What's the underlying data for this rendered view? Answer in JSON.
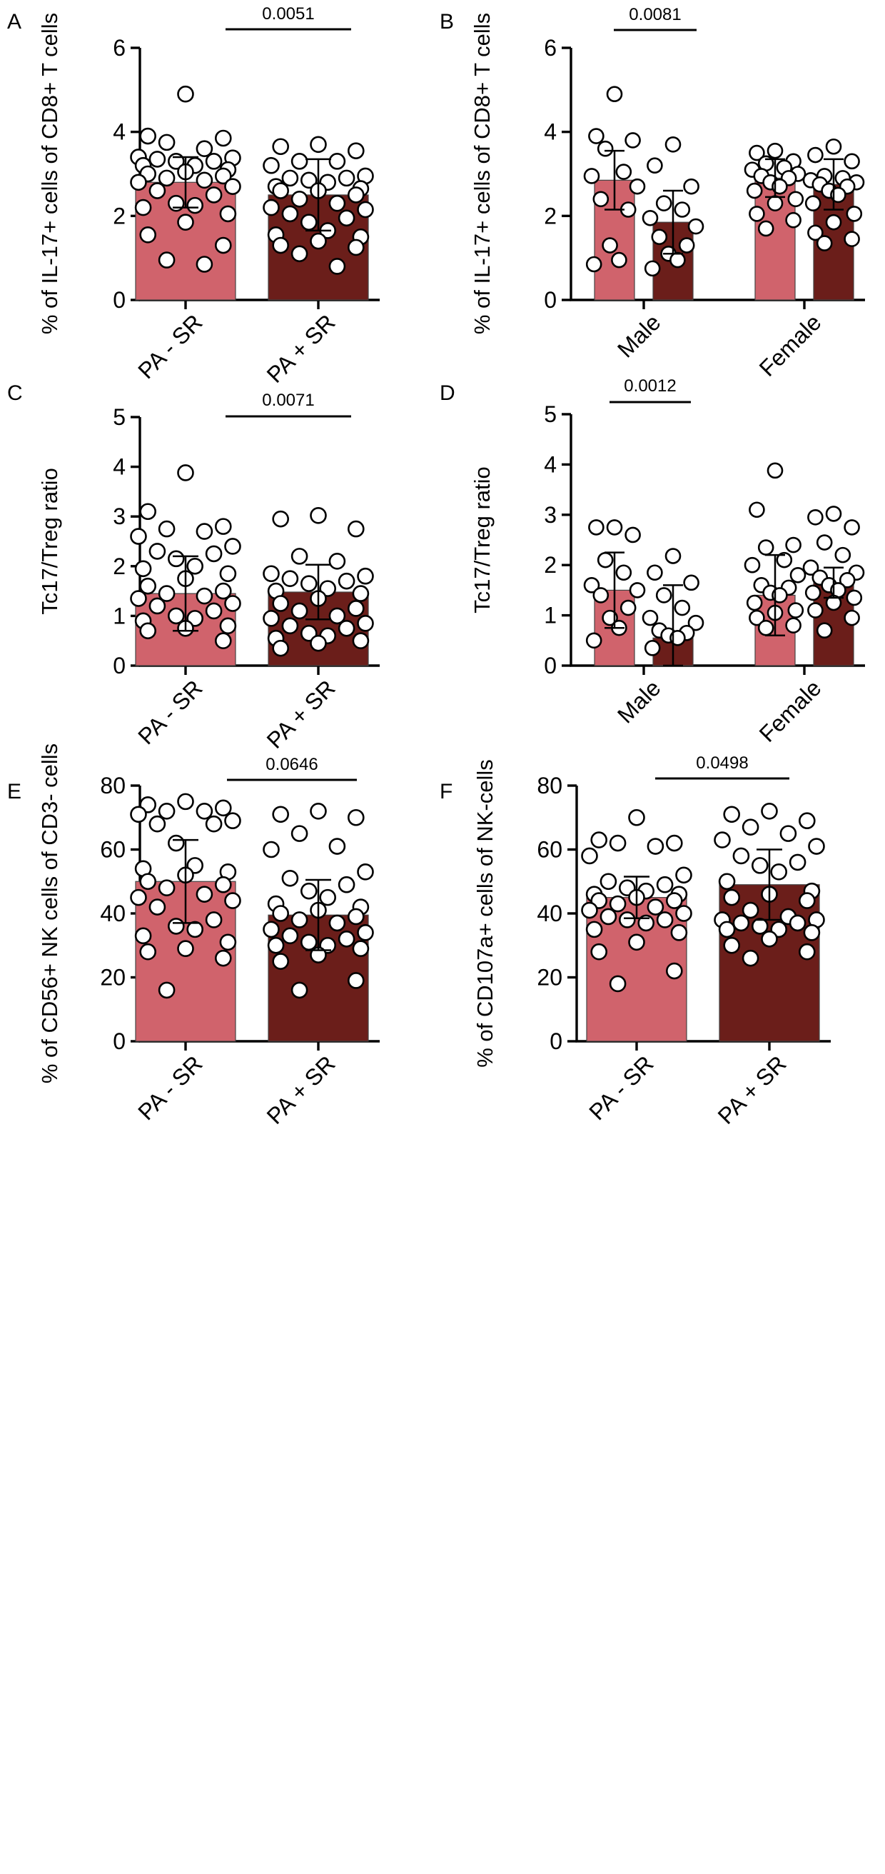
{
  "colors": {
    "bar_minus": "#D0636C",
    "bar_plus": "#6B1E1A",
    "point_fill": "#FFFFFF",
    "point_stroke": "#000000"
  },
  "chart_data": [
    {
      "panel": "A",
      "type": "bar",
      "title": "",
      "ylabel": "% of IL-17+ cells of CD8+ T cells",
      "xlabel": "",
      "ylim": [
        0,
        6
      ],
      "yticks": [
        0,
        2,
        4,
        6
      ],
      "categories": [
        "PA - SR",
        "PA + SR"
      ],
      "series": [
        {
          "name": "PA - SR",
          "color": "#D0636C",
          "mean": 2.8,
          "sd": 0.6,
          "points": [
            4.9,
            3.9,
            3.85,
            3.75,
            3.6,
            3.4,
            3.38,
            3.35,
            3.3,
            3.3,
            3.2,
            3.2,
            3.1,
            3.05,
            3.0,
            2.95,
            2.9,
            2.85,
            2.8,
            2.7,
            2.6,
            2.5,
            2.3,
            2.25,
            2.2,
            2.05,
            1.85,
            1.55,
            1.3,
            0.95,
            0.85
          ]
        },
        {
          "name": "PA + SR",
          "color": "#6B1E1A",
          "mean": 2.5,
          "sd": 0.85,
          "points": [
            3.7,
            3.65,
            3.55,
            3.3,
            3.3,
            3.2,
            2.95,
            2.9,
            2.9,
            2.85,
            2.8,
            2.7,
            2.65,
            2.6,
            2.6,
            2.5,
            2.4,
            2.3,
            2.2,
            2.15,
            2.05,
            1.95,
            1.85,
            1.65,
            1.55,
            1.5,
            1.4,
            1.3,
            1.25,
            1.1,
            0.8
          ]
        }
      ],
      "comparisons": [
        {
          "from": "PA - SR",
          "to": "PA + SR",
          "label": "0.0051"
        }
      ]
    },
    {
      "panel": "B",
      "type": "bar",
      "title": "",
      "ylabel": "% of IL-17+ cells of CD8+ T cells",
      "xlabel": "",
      "ylim": [
        0,
        6
      ],
      "yticks": [
        0,
        2,
        4,
        6
      ],
      "categories": [
        "Male",
        "Female"
      ],
      "series": [
        {
          "name": "PA - SR",
          "color": "#D0636C",
          "means": [
            2.85,
            2.9
          ],
          "sds": [
            0.7,
            0.45
          ],
          "points": [
            [
              4.9,
              3.9,
              3.8,
              3.6,
              3.05,
              2.95,
              2.7,
              2.4,
              2.15,
              1.3,
              0.95,
              0.85
            ],
            [
              3.55,
              3.5,
              3.3,
              3.25,
              3.15,
              3.1,
              3.0,
              2.95,
              2.9,
              2.8,
              2.7,
              2.6,
              2.4,
              2.3,
              2.05,
              1.9,
              1.7
            ]
          ]
        },
        {
          "name": "PA + SR",
          "color": "#6B1E1A",
          "means": [
            1.85,
            2.75
          ],
          "sds": [
            0.75,
            0.6
          ],
          "points": [
            [
              3.7,
              3.2,
              2.7,
              2.3,
              2.15,
              1.95,
              1.75,
              1.5,
              1.3,
              1.1,
              0.95,
              0.75
            ],
            [
              3.65,
              3.45,
              3.3,
              2.95,
              2.9,
              2.85,
              2.8,
              2.75,
              2.7,
              2.6,
              2.5,
              2.3,
              2.05,
              1.85,
              1.6,
              1.45,
              1.35
            ]
          ]
        }
      ],
      "comparisons": [
        {
          "category": "Male",
          "label": "0.0081"
        }
      ]
    },
    {
      "panel": "C",
      "type": "bar",
      "title": "",
      "ylabel": "Tc17/Treg ratio",
      "xlabel": "",
      "ylim": [
        0,
        5
      ],
      "yticks": [
        0,
        1,
        2,
        3,
        4,
        5
      ],
      "categories": [
        "PA - SR",
        "PA + SR"
      ],
      "series": [
        {
          "name": "PA - SR",
          "color": "#D0636C",
          "mean": 1.45,
          "sd": 0.75,
          "points": [
            3.88,
            3.1,
            2.8,
            2.75,
            2.7,
            2.6,
            2.4,
            2.3,
            2.25,
            2.15,
            2.0,
            1.95,
            1.85,
            1.75,
            1.6,
            1.5,
            1.45,
            1.4,
            1.35,
            1.25,
            1.2,
            1.1,
            1.0,
            0.95,
            0.9,
            0.8,
            0.75,
            0.7,
            0.5
          ]
        },
        {
          "name": "PA + SR",
          "color": "#6B1E1A",
          "mean": 1.48,
          "sd": 0.55,
          "points": [
            3.02,
            2.95,
            2.75,
            2.2,
            2.1,
            1.85,
            1.8,
            1.75,
            1.7,
            1.65,
            1.55,
            1.5,
            1.45,
            1.35,
            1.25,
            1.15,
            1.1,
            1.0,
            0.95,
            0.85,
            0.8,
            0.75,
            0.65,
            0.6,
            0.55,
            0.5,
            0.45,
            0.35
          ]
        }
      ],
      "comparisons": [
        {
          "from": "PA - SR",
          "to": "PA + SR",
          "label": "0.0071"
        }
      ]
    },
    {
      "panel": "D",
      "type": "bar",
      "title": "",
      "ylabel": "Tc17/Treg ratio",
      "xlabel": "",
      "ylim": [
        0,
        5
      ],
      "yticks": [
        0,
        1,
        2,
        3,
        4,
        5
      ],
      "categories": [
        "Male",
        "Female"
      ],
      "series": [
        {
          "name": "PA - SR",
          "color": "#D0636C",
          "means": [
            1.5,
            1.4
          ],
          "sds": [
            0.75,
            0.8
          ],
          "points": [
            [
              2.75,
              2.75,
              2.6,
              2.1,
              1.85,
              1.6,
              1.5,
              1.4,
              1.15,
              0.95,
              0.75,
              0.5
            ],
            [
              3.88,
              3.1,
              2.4,
              2.35,
              2.1,
              2.0,
              1.8,
              1.6,
              1.55,
              1.45,
              1.4,
              1.25,
              1.1,
              1.05,
              0.95,
              0.8,
              0.75
            ]
          ]
        },
        {
          "name": "PA + SR",
          "color": "#6B1E1A",
          "means": [
            0.55,
            1.65
          ],
          "sds": [
            1.05,
            0.3
          ],
          "points": [
            [
              2.18,
              1.85,
              1.65,
              1.4,
              1.15,
              0.95,
              0.85,
              0.7,
              0.65,
              0.6,
              0.55,
              0.35
            ],
            [
              3.02,
              2.95,
              2.75,
              2.45,
              2.2,
              1.95,
              1.85,
              1.75,
              1.7,
              1.6,
              1.5,
              1.45,
              1.35,
              1.25,
              1.1,
              0.95,
              0.7
            ]
          ]
        }
      ],
      "comparisons": [
        {
          "category": "Male",
          "label": "0.0012"
        }
      ]
    },
    {
      "panel": "E",
      "type": "bar",
      "title": "",
      "ylabel": "% of CD56+ NK cells of CD3- cells",
      "xlabel": "",
      "ylim": [
        0,
        80
      ],
      "yticks": [
        0,
        20,
        40,
        60,
        80
      ],
      "categories": [
        "PA - SR",
        "PA + SR"
      ],
      "series": [
        {
          "name": "PA - SR",
          "color": "#D0636C",
          "mean": 50,
          "sd": 13,
          "points": [
            75,
            74,
            73,
            72,
            72,
            71,
            69,
            68,
            68,
            62,
            55,
            54,
            53,
            52,
            50,
            49,
            48,
            46,
            45,
            44,
            42,
            38,
            36,
            35,
            33,
            31,
            29,
            28,
            26,
            16
          ]
        },
        {
          "name": "PA + SR",
          "color": "#6B1E1A",
          "mean": 39.5,
          "sd": 11,
          "points": [
            72,
            71,
            70,
            65,
            61,
            60,
            53,
            51,
            49,
            47,
            45,
            43,
            42,
            41,
            40,
            39,
            38,
            37,
            35,
            34,
            33,
            32,
            31,
            30,
            30,
            29,
            27,
            25,
            19,
            16
          ]
        }
      ],
      "comparisons": [
        {
          "from": "PA - SR",
          "to": "PA + SR",
          "label": "0.0646"
        }
      ]
    },
    {
      "panel": "F",
      "type": "bar",
      "title": "",
      "ylabel": "% of CD107a+ cells of NK-cells",
      "xlabel": "",
      "ylim": [
        0,
        80
      ],
      "yticks": [
        0,
        20,
        40,
        60,
        80
      ],
      "categories": [
        "PA - SR",
        "PA + SR"
      ],
      "series": [
        {
          "name": "PA - SR",
          "color": "#D0636C",
          "mean": 45,
          "sd": 6.5,
          "points": [
            70,
            63,
            62,
            62,
            61,
            58,
            52,
            50,
            49,
            48,
            47,
            46,
            46,
            45,
            44,
            44,
            43,
            42,
            41,
            40,
            39,
            38,
            38,
            37,
            35,
            34,
            31,
            28,
            22,
            18
          ]
        },
        {
          "name": "PA + SR",
          "color": "#6B1E1A",
          "mean": 49,
          "sd": 11,
          "points": [
            72,
            71,
            69,
            67,
            65,
            63,
            61,
            58,
            56,
            55,
            53,
            50,
            47,
            46,
            45,
            44,
            41,
            39,
            38,
            38,
            37,
            37,
            36,
            35,
            35,
            34,
            32,
            30,
            28,
            26
          ]
        }
      ],
      "comparisons": [
        {
          "from": "PA - SR",
          "to": "PA + SR",
          "label": "0.0498"
        }
      ]
    }
  ]
}
